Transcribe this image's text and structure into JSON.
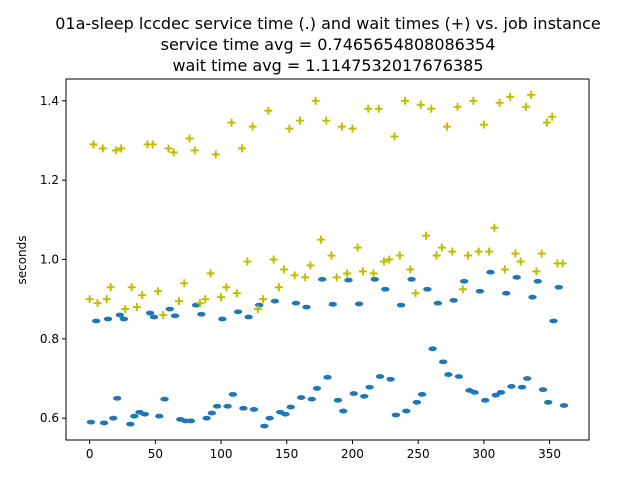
{
  "chart_data": {
    "type": "scatter",
    "title_lines": [
      "01a-sleep lccdec service time (.) and wait times (+) vs. job instance",
      "service time avg = 0.7465654808086354",
      "wait time avg = 1.1147532017676385"
    ],
    "xlabel": "",
    "ylabel": "seconds",
    "xlim": [
      -18,
      380
    ],
    "ylim": [
      0.545,
      1.455
    ],
    "xticks": [
      0,
      50,
      100,
      150,
      200,
      250,
      300,
      350
    ],
    "yticks": [
      0.6,
      0.8,
      1.0,
      1.2,
      1.4
    ],
    "ytick_labels": [
      "0.6",
      "0.8",
      "1.0",
      "1.2",
      "1.4"
    ],
    "grid": false,
    "legend": "none",
    "colors": {
      "service": "#1f77b4",
      "wait": "#bfbf00"
    },
    "series": [
      {
        "marker": "dot",
        "x": [
          1,
          5,
          11,
          14,
          18,
          21,
          23,
          26,
          31,
          34,
          38,
          42,
          46,
          49,
          53,
          57,
          61,
          65,
          69,
          73,
          77,
          81,
          85,
          89,
          93,
          97,
          101,
          105,
          109,
          113,
          117,
          121,
          125,
          129,
          133,
          137,
          141,
          145,
          149,
          153,
          157,
          161,
          165,
          169,
          173,
          177,
          181,
          185,
          189,
          193,
          197,
          201,
          205,
          209,
          213,
          217,
          221,
          225,
          229,
          233,
          237,
          241,
          245,
          249,
          253,
          257,
          261,
          265,
          269,
          273,
          277,
          281,
          285,
          289,
          293,
          297,
          301,
          305,
          309,
          313,
          317,
          321,
          325,
          329,
          333,
          337,
          341,
          345,
          349,
          353,
          357,
          361
        ],
        "y": [
          0.59,
          0.845,
          0.588,
          0.85,
          0.6,
          0.65,
          0.86,
          0.85,
          0.585,
          0.605,
          0.615,
          0.61,
          0.865,
          0.855,
          0.605,
          0.648,
          0.875,
          0.858,
          0.597,
          0.593,
          0.593,
          0.885,
          0.862,
          0.6,
          0.613,
          0.63,
          0.85,
          0.63,
          0.66,
          0.868,
          0.625,
          0.855,
          0.622,
          0.885,
          0.58,
          0.6,
          0.895,
          0.615,
          0.61,
          0.628,
          0.89,
          0.652,
          0.88,
          0.648,
          0.675,
          0.95,
          0.703,
          0.887,
          0.645,
          0.618,
          0.948,
          0.662,
          0.888,
          0.655,
          0.678,
          0.95,
          0.705,
          0.925,
          0.698,
          0.608,
          0.885,
          0.618,
          0.95,
          0.64,
          0.66,
          0.925,
          0.775,
          0.89,
          0.742,
          0.71,
          0.897,
          0.705,
          0.945,
          0.67,
          0.665,
          0.92,
          0.645,
          0.968,
          0.658,
          0.665,
          0.915,
          0.68,
          0.955,
          0.678,
          0.7,
          0.905,
          0.945,
          0.672,
          0.64,
          0.845,
          0.93,
          0.632
        ]
      },
      {
        "marker": "plus",
        "x": [
          0,
          3,
          6,
          10,
          13,
          16,
          20,
          24,
          27,
          32,
          36,
          40,
          44,
          48,
          52,
          56,
          60,
          64,
          68,
          72,
          76,
          80,
          84,
          88,
          92,
          96,
          100,
          104,
          108,
          112,
          116,
          120,
          124,
          128,
          132,
          136,
          140,
          144,
          148,
          152,
          156,
          160,
          164,
          168,
          172,
          176,
          180,
          184,
          188,
          192,
          196,
          200,
          204,
          208,
          212,
          216,
          220,
          224,
          228,
          232,
          236,
          240,
          244,
          248,
          252,
          256,
          260,
          264,
          268,
          272,
          276,
          280,
          284,
          288,
          292,
          296,
          300,
          304,
          308,
          312,
          316,
          320,
          324,
          328,
          332,
          336,
          340,
          344,
          348,
          352,
          356,
          360
        ],
        "y": [
          0.9,
          1.29,
          0.89,
          1.28,
          0.9,
          0.93,
          1.275,
          1.28,
          0.875,
          0.93,
          0.88,
          0.91,
          1.29,
          1.29,
          0.92,
          0.86,
          1.28,
          1.27,
          0.895,
          0.94,
          1.305,
          1.275,
          0.89,
          0.9,
          0.965,
          1.265,
          0.905,
          0.93,
          1.345,
          0.915,
          1.28,
          0.995,
          1.335,
          0.875,
          0.9,
          1.375,
          1.0,
          0.93,
          0.975,
          1.33,
          0.96,
          1.35,
          0.955,
          0.985,
          1.4,
          1.05,
          1.35,
          1.01,
          0.955,
          1.335,
          0.965,
          1.33,
          1.03,
          0.97,
          1.38,
          0.965,
          1.38,
          0.995,
          1.0,
          1.31,
          1.01,
          1.4,
          0.975,
          0.915,
          1.39,
          1.06,
          1.38,
          1.01,
          1.03,
          1.335,
          1.02,
          1.385,
          0.925,
          1.01,
          1.4,
          1.02,
          1.34,
          1.02,
          1.08,
          1.395,
          0.975,
          1.41,
          1.015,
          0.995,
          1.385,
          1.415,
          0.97,
          1.015,
          1.345,
          1.36,
          0.99,
          0.99
        ]
      }
    ]
  }
}
